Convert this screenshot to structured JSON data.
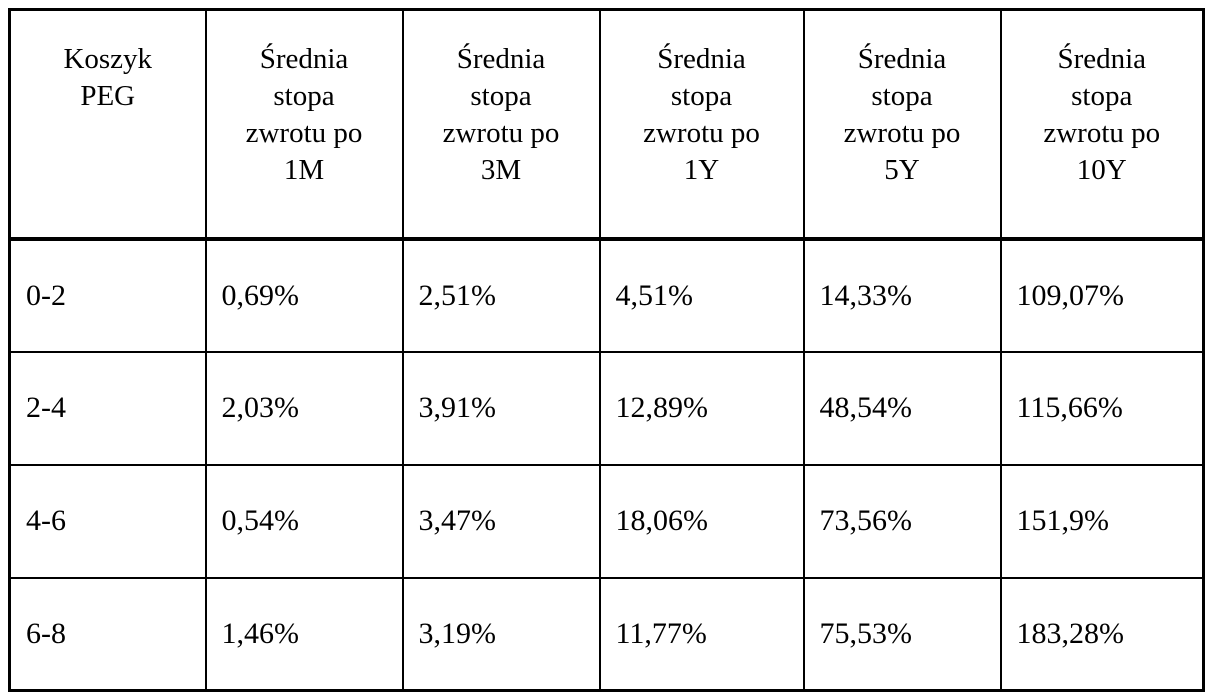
{
  "colors": {
    "background": "#ffffff",
    "border": "#000000",
    "text": "#000000"
  },
  "table": {
    "header": [
      "Koszyk\nPEG",
      "Średnia\nstopa\nzwrotu po\n1M",
      "Średnia\nstopa\nzwrotu po\n3M",
      "Średnia\nstopa\nzwrotu po\n1Y",
      "Średnia\nstopa\nzwrotu po\n5Y",
      "Średnia\nstopa\nzwrotu po\n10Y"
    ],
    "rows": [
      [
        "0-2",
        "0,69%",
        "2,51%",
        "4,51%",
        "14,33%",
        "109,07%"
      ],
      [
        "2-4",
        "2,03%",
        "3,91%",
        "12,89%",
        "48,54%",
        "115,66%"
      ],
      [
        "4-6",
        "0,54%",
        "3,47%",
        "18,06%",
        "73,56%",
        "151,9%"
      ],
      [
        "6-8",
        "1,46%",
        "3,19%",
        "11,77%",
        "75,53%",
        "183,28%"
      ]
    ]
  },
  "chart_data": {
    "type": "table",
    "title": "",
    "columns": [
      "Koszyk PEG",
      "Średnia stopa zwrotu po 1M",
      "Średnia stopa zwrotu po 3M",
      "Średnia stopa zwrotu po 1Y",
      "Średnia stopa zwrotu po 5Y",
      "Średnia stopa zwrotu po 10Y"
    ],
    "rows": [
      [
        "0-2",
        "0,69%",
        "2,51%",
        "4,51%",
        "14,33%",
        "109,07%"
      ],
      [
        "2-4",
        "2,03%",
        "3,91%",
        "12,89%",
        "48,54%",
        "115,66%"
      ],
      [
        "4-6",
        "0,54%",
        "3,47%",
        "18,06%",
        "73,56%",
        "151,9%"
      ],
      [
        "6-8",
        "1,46%",
        "3,19%",
        "11,77%",
        "75,53%",
        "183,28%"
      ]
    ],
    "values_numeric_percent": {
      "categories": [
        "0-2",
        "2-4",
        "4-6",
        "6-8"
      ],
      "series": [
        {
          "name": "1M",
          "values": [
            0.69,
            2.03,
            0.54,
            1.46
          ]
        },
        {
          "name": "3M",
          "values": [
            2.51,
            3.91,
            3.47,
            3.19
          ]
        },
        {
          "name": "1Y",
          "values": [
            4.51,
            12.89,
            18.06,
            11.77
          ]
        },
        {
          "name": "5Y",
          "values": [
            14.33,
            48.54,
            73.56,
            75.53
          ]
        },
        {
          "name": "10Y",
          "values": [
            109.07,
            115.66,
            151.9,
            183.28
          ]
        }
      ]
    }
  }
}
